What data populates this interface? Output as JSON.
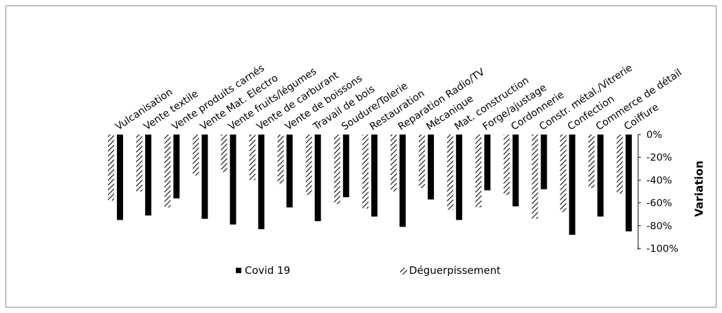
{
  "chart_data": {
    "type": "bar",
    "orientation": "vertical",
    "axis_position": "right",
    "category_labels_position": "top",
    "categories": [
      "Vulcanisation",
      "Vente textile",
      "Vente produits carnés",
      "Vente Mat. Electro",
      "Vente fruits/légumes",
      "Vente de carburant",
      "Vente de boissons",
      "Travail de bois",
      "Soudure/Tolerie",
      "Restauration",
      "Reparation Radio/TV",
      "Mécanique",
      "Mat. construction",
      "Forge/ajustage",
      "Cordonnerie",
      "Constr. métal./Vitrerie",
      "Confection",
      "Commerce de détail",
      "Coiffure"
    ],
    "series": [
      {
        "name": "Covid 19",
        "color": "#000000",
        "pattern": "solid",
        "values": [
          -75,
          -71,
          -56,
          -74,
          -79,
          -83,
          -64,
          -76,
          -55,
          -72,
          -81,
          -57,
          -75,
          -49,
          -63,
          -48,
          -88,
          -72,
          -85
        ]
      },
      {
        "name": "Déguerpissement",
        "color": "#000000",
        "pattern": "diagonal-hatch",
        "values": [
          -58,
          -50,
          -64,
          -36,
          -33,
          -40,
          -43,
          -53,
          -61,
          -65,
          -50,
          -47,
          -66,
          -64,
          -53,
          -74,
          -68,
          -47,
          -52
        ]
      }
    ],
    "legend": {
      "position": "bottom",
      "order": [
        "Covid 19",
        "Déguerpissement"
      ]
    },
    "ylim": [
      -100,
      0
    ],
    "yticks": [
      0,
      -20,
      -40,
      -60,
      -80,
      -100
    ],
    "ytick_labels": [
      "0%",
      "-20%",
      "-40%",
      "-60%",
      "-80%",
      "-100%"
    ],
    "ylabel": "Variation",
    "xlabel": "",
    "title": "",
    "grid": false
  }
}
